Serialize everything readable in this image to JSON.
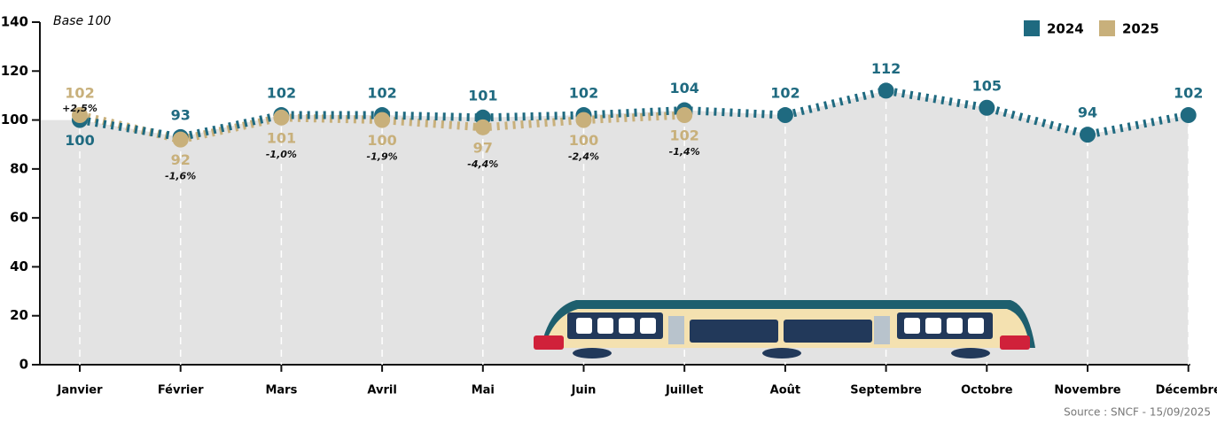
{
  "chart_data": {
    "type": "line",
    "subtitle": "Base 100",
    "categories": [
      "Janvier",
      "Février",
      "Mars",
      "Avril",
      "Mai",
      "Juin",
      "Juillet",
      "Août",
      "Septembre",
      "Octobre",
      "Novembre",
      "Décembre"
    ],
    "series": [
      {
        "name": "2024",
        "color": "#1f6a80",
        "values": [
          100,
          93,
          102,
          102,
          101,
          102,
          104,
          102,
          112,
          105,
          94,
          102
        ]
      },
      {
        "name": "2025",
        "color": "#c8b07b",
        "values": [
          102,
          92,
          101,
          100,
          97,
          100,
          102,
          null,
          null,
          null,
          null,
          null
        ],
        "changes": [
          "+2,5%",
          "-1,6%",
          "-1,0%",
          "-1,9%",
          "-4,4%",
          "-2,4%",
          "-1,4%",
          null,
          null,
          null,
          null,
          null
        ]
      }
    ],
    "ylim": [
      0,
      140
    ],
    "yticks": [
      0,
      20,
      40,
      60,
      80,
      100,
      120,
      140
    ],
    "grid": true,
    "legend": "upper right",
    "source": "Source : SNCF - 15/09/2025"
  }
}
